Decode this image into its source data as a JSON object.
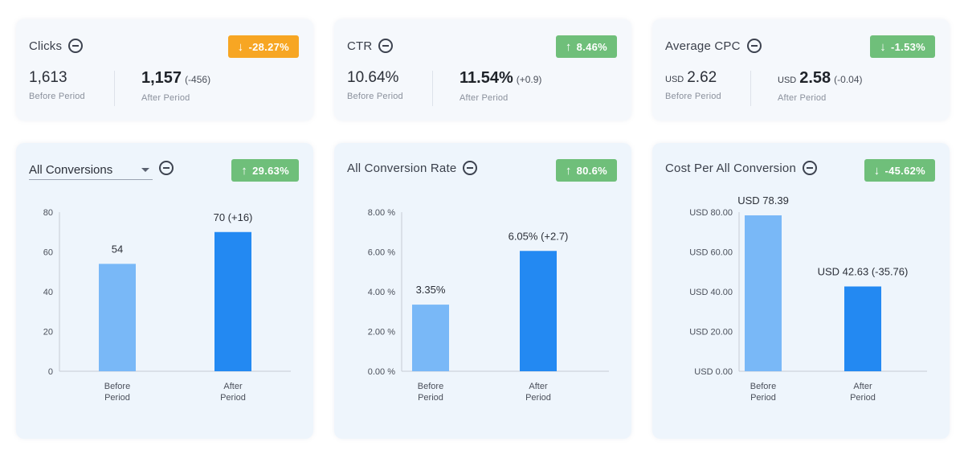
{
  "metrics": [
    {
      "title": "Clicks",
      "badge": "-28.27%",
      "badge_dir": "down",
      "badge_color": "#f7a623",
      "before_value": "1,613",
      "before_label": "Before Period",
      "after_value": "1,157",
      "after_delta": "(-456)",
      "after_label": "After Period"
    },
    {
      "title": "CTR",
      "badge": "8.46%",
      "badge_dir": "up",
      "badge_color": "#6fbf7a",
      "before_value": "10.64%",
      "before_label": "Before Period",
      "after_value": "11.54%",
      "after_delta": "(+0.9)",
      "after_label": "After Period"
    },
    {
      "title": "Average CPC",
      "badge": "-1.53%",
      "badge_dir": "down",
      "badge_color": "#6fbf7a",
      "before_currency": "USD",
      "before_value": "2.62",
      "before_label": "Before Period",
      "after_currency": "USD",
      "after_value": "2.58",
      "after_delta": "(-0.04)",
      "after_label": "After Period"
    }
  ],
  "conversions_card": {
    "dropdown_value": "All Conversions",
    "badge": "29.63%",
    "badge_dir": "up"
  },
  "rate_card": {
    "title": "All Conversion Rate",
    "badge": "80.6%",
    "badge_dir": "up"
  },
  "cost_card": {
    "title": "Cost Per All Conversion",
    "badge": "-45.62%",
    "badge_dir": "down"
  },
  "icons": {
    "up": "↑",
    "down": "↓"
  },
  "colors": {
    "before_bar": "#79b8f7",
    "after_bar": "#2389f2",
    "axis": "#c7ccd4"
  },
  "chart_data": [
    {
      "type": "bar",
      "categories": [
        [
          "Before",
          "Period"
        ],
        [
          "After",
          "Period"
        ]
      ],
      "values": [
        54,
        70
      ],
      "data_labels": [
        "54",
        "70 (+16)"
      ],
      "yticks": [
        "0",
        "20",
        "40",
        "60",
        "80"
      ],
      "ylim": [
        0,
        80
      ]
    },
    {
      "type": "bar",
      "categories": [
        [
          "Before",
          "Period"
        ],
        [
          "After",
          "Period"
        ]
      ],
      "values": [
        3.35,
        6.05
      ],
      "data_labels": [
        "3.35%",
        "6.05% (+2.7)"
      ],
      "yticks": [
        "0.00 %",
        "2.00 %",
        "4.00 %",
        "6.00 %",
        "8.00 %"
      ],
      "ylim": [
        0,
        8
      ]
    },
    {
      "type": "bar",
      "categories": [
        [
          "Before",
          "Period"
        ],
        [
          "After",
          "Period"
        ]
      ],
      "values": [
        78.39,
        42.63
      ],
      "data_labels": [
        "USD 78.39",
        "USD 42.63 (-35.76)"
      ],
      "yticks": [
        "USD 0.00",
        "USD 20.00",
        "USD 40.00",
        "USD 60.00",
        "USD 80.00"
      ],
      "ylim": [
        0,
        80
      ]
    }
  ]
}
